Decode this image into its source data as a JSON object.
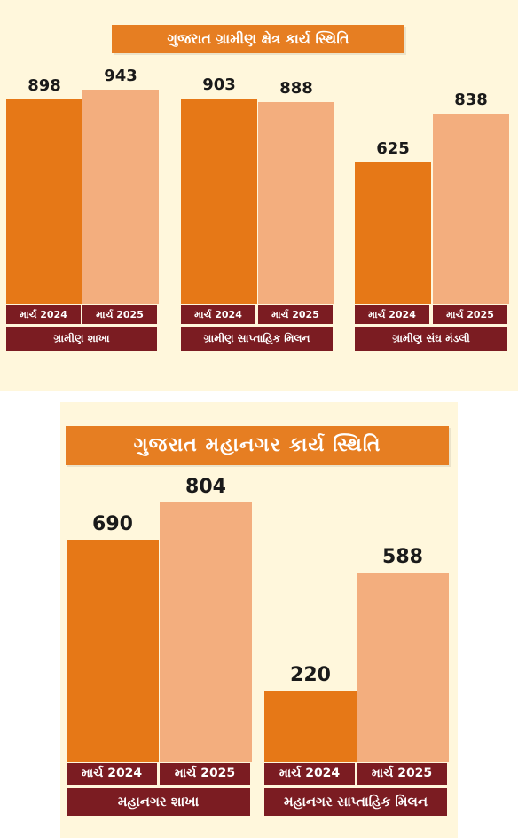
{
  "chart_data": [
    {
      "type": "bar",
      "title": "ગુજરાત ગ્રામીણ ક્ષેત્ર કાર્ય સ્થિતિ",
      "categories": [
        "ગ્રામીણ શાખા",
        "ગ્રામીણ સાપ્તાહિક મિલન",
        "ગ્રામીણ સંઘ મંડલી"
      ],
      "series_labels": [
        "માર્ચ 2024",
        "માર્ચ 2025"
      ],
      "values": [
        [
          898,
          943
        ],
        [
          903,
          888
        ],
        [
          625,
          838
        ]
      ],
      "colors": [
        "#e67817",
        "#f3ae7e"
      ]
    },
    {
      "type": "bar",
      "title": "ગુજરાત મહાનગર કાર્ય સ્થિતિ",
      "categories": [
        "મહાનગર શાખા",
        "મહાનગર સાપ્તાહિક મિલન"
      ],
      "series_labels": [
        "માર્ચ 2024",
        "માર્ચ 2025"
      ],
      "values": [
        [
          690,
          804
        ],
        [
          220,
          588
        ]
      ],
      "colors": [
        "#e67817",
        "#f3ae7e"
      ]
    }
  ]
}
